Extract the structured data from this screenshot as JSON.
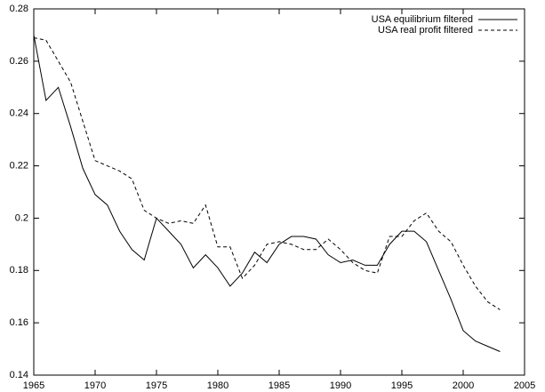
{
  "chart_data": {
    "type": "line",
    "x": [
      1965,
      1966,
      1967,
      1968,
      1969,
      1970,
      1971,
      1972,
      1973,
      1974,
      1975,
      1976,
      1977,
      1978,
      1979,
      1980,
      1981,
      1982,
      1983,
      1984,
      1985,
      1986,
      1987,
      1988,
      1989,
      1990,
      1991,
      1992,
      1993,
      1994,
      1995,
      1996,
      1997,
      1998,
      1999,
      2000,
      2001,
      2002,
      2003
    ],
    "series": [
      {
        "name": "USA equilibrium filtered",
        "color": "#000000",
        "dash": "solid",
        "values": [
          0.27,
          0.245,
          0.25,
          0.235,
          0.219,
          0.209,
          0.205,
          0.195,
          0.188,
          0.184,
          0.2,
          0.195,
          0.19,
          0.181,
          0.186,
          0.181,
          0.174,
          0.179,
          0.187,
          0.183,
          0.19,
          0.193,
          0.193,
          0.192,
          0.186,
          0.183,
          0.184,
          0.182,
          0.182,
          0.19,
          0.195,
          0.195,
          0.191,
          0.18,
          0.169,
          0.157,
          0.153,
          0.151,
          0.149
        ]
      },
      {
        "name": "USA real profit filtered",
        "color": "#000000",
        "dash": "dashed",
        "values": [
          0.269,
          0.268,
          0.26,
          0.252,
          0.237,
          0.222,
          0.22,
          0.218,
          0.215,
          0.203,
          0.2,
          0.198,
          0.199,
          0.198,
          0.205,
          0.189,
          0.189,
          0.177,
          0.182,
          0.19,
          0.191,
          0.19,
          0.188,
          0.188,
          0.192,
          0.188,
          0.183,
          0.18,
          0.179,
          0.193,
          0.193,
          0.199,
          0.202,
          0.195,
          0.191,
          0.182,
          0.174,
          0.168,
          0.165
        ]
      }
    ],
    "xlim": [
      1965,
      2005
    ],
    "xticks": [
      1965,
      1970,
      1975,
      1980,
      1985,
      1990,
      1995,
      2000,
      2005
    ],
    "ylim": [
      0.14,
      0.28
    ],
    "yticks": [
      0.14,
      0.16,
      0.18,
      0.2,
      0.22,
      0.24,
      0.26,
      0.28
    ],
    "legend": "top-right"
  }
}
